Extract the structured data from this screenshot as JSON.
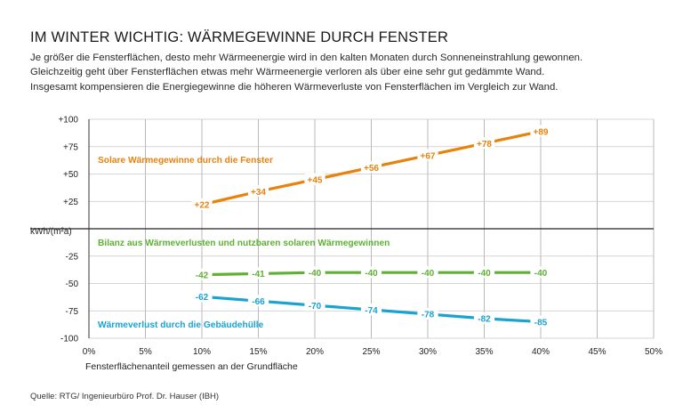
{
  "header": {
    "title": "IM WINTER WICHTIG: WÄRMEGEWINNE DURCH FENSTER",
    "description": [
      "Je größer die Fensterflächen, desto mehr Wärmeenergie wird in den kalten Monaten durch Sonneneinstrahlung gewonnen.",
      "Gleichzeitig geht über Fensterflächen etwas mehr Wärmeenergie verloren als über eine sehr gut gedämmte Wand.",
      "Insgesamt kompensieren die Energiegewinne die höheren Wärmeverluste von Fensterflächen im Vergleich zur Wand."
    ]
  },
  "footer": {
    "source": "Quelle: RTG/ Ingenieurbüro Prof. Dr. Hauser (IBH)"
  },
  "chart_data": {
    "type": "line",
    "title": "IM WINTER WICHTIG: WÄRMEGEWINNE DURCH FENSTER",
    "xlabel": "Fensterflächenanteil gemessen an der Grundfläche",
    "ylabel": "kWh/(m²a)",
    "xlim": [
      0,
      50
    ],
    "ylim": [
      -100,
      100
    ],
    "x_ticks": [
      0,
      5,
      10,
      15,
      20,
      25,
      30,
      35,
      40,
      45,
      50
    ],
    "x_tick_labels": [
      "0%",
      "5%",
      "10%",
      "15%",
      "20%",
      "25%",
      "30%",
      "35%",
      "40%",
      "45%",
      "50%"
    ],
    "y_ticks": [
      100,
      75,
      50,
      25,
      0,
      -25,
      -50,
      -75,
      -100
    ],
    "y_tick_labels": [
      "+100",
      "+75",
      "+50",
      "+25",
      "kWh/(m²a)",
      "-25",
      "-50",
      "-75",
      "-100"
    ],
    "grid": true,
    "x": [
      10,
      15,
      20,
      25,
      30,
      35,
      40
    ],
    "series": [
      {
        "name": "Solare Wärmegewinne durch die Fenster",
        "color": "#e8820c",
        "values": [
          22,
          34,
          45,
          56,
          67,
          78,
          89
        ],
        "value_labels": [
          "+22",
          "+34",
          "+45",
          "+56",
          "+67",
          "+78",
          "+89"
        ]
      },
      {
        "name": "Bilanz aus Wärmeverlusten und nutzbaren solaren Wärmegewinnen",
        "color": "#5fb133",
        "values": [
          -42,
          -41,
          -40,
          -40,
          -40,
          -40,
          -40
        ],
        "value_labels": [
          "-42",
          "-41",
          "-40",
          "-40",
          "-40",
          "-40",
          "-40"
        ]
      },
      {
        "name": "Wärmeverlust durch die Gebäudehülle",
        "color": "#1aa3d1",
        "values": [
          -62,
          -66,
          -70,
          -74,
          -78,
          -82,
          -85
        ],
        "value_labels": [
          "-62",
          "-66",
          "-70",
          "-74",
          "-78",
          "-82",
          "-85"
        ]
      }
    ]
  }
}
